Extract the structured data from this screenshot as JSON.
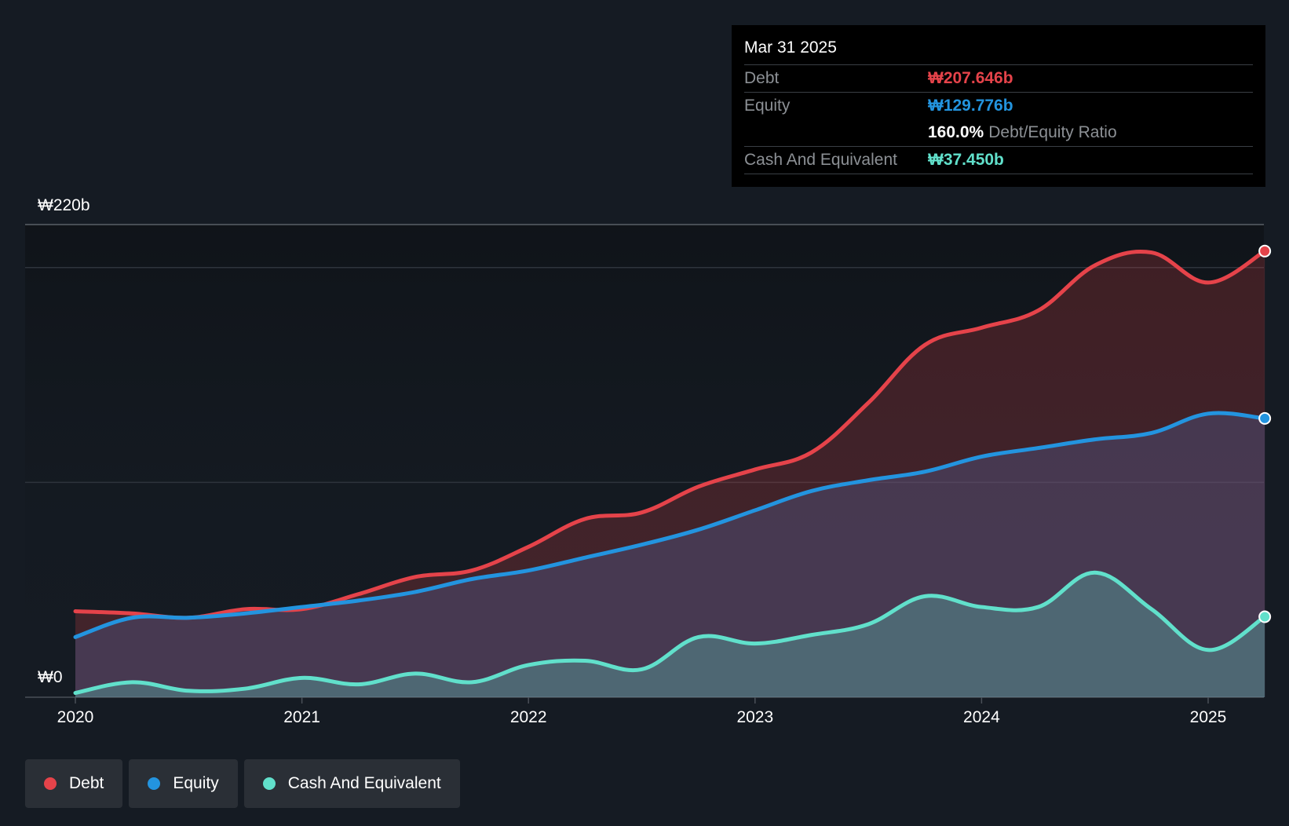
{
  "chart_data": {
    "type": "area",
    "y_max_label": "₩220b",
    "y_min_label": "₩0",
    "ylim": [
      0,
      220
    ],
    "x_ticks": [
      "2020",
      "2021",
      "2022",
      "2023",
      "2024",
      "2025"
    ],
    "series": [
      {
        "name": "Debt",
        "color": "#e5434a",
        "x": [
          2020.0,
          2020.25,
          2020.5,
          2020.75,
          2021.0,
          2021.25,
          2021.5,
          2021.75,
          2022.0,
          2022.25,
          2022.5,
          2022.75,
          2023.0,
          2023.25,
          2023.5,
          2023.75,
          2024.0,
          2024.25,
          2024.5,
          2024.75,
          2025.0,
          2025.25
        ],
        "values": [
          40,
          39,
          37,
          41,
          41,
          48,
          56,
          59,
          70,
          83,
          86,
          98,
          106,
          114,
          137,
          164,
          172,
          180,
          201,
          207,
          193,
          207.646
        ]
      },
      {
        "name": "Equity",
        "color": "#2394df",
        "x": [
          2020.0,
          2020.25,
          2020.5,
          2020.75,
          2021.0,
          2021.25,
          2021.5,
          2021.75,
          2022.0,
          2022.25,
          2022.5,
          2022.75,
          2023.0,
          2023.25,
          2023.5,
          2023.75,
          2024.0,
          2024.25,
          2024.5,
          2024.75,
          2025.0,
          2025.25
        ],
        "values": [
          28,
          37,
          37,
          39,
          42,
          45,
          49,
          55,
          59,
          65,
          71,
          78,
          87,
          96,
          101,
          105,
          112,
          116,
          120,
          123,
          132,
          129.776
        ]
      },
      {
        "name": "Cash And Equivalent",
        "color": "#61e0cb",
        "x": [
          2020.0,
          2020.25,
          2020.5,
          2020.75,
          2021.0,
          2021.25,
          2021.5,
          2021.75,
          2022.0,
          2022.25,
          2022.5,
          2022.75,
          2023.0,
          2023.25,
          2023.5,
          2023.75,
          2024.0,
          2024.25,
          2024.5,
          2024.75,
          2025.0,
          2025.25
        ],
        "values": [
          2,
          7,
          3,
          4,
          9,
          6,
          11,
          7,
          15,
          17,
          13,
          28,
          25,
          29,
          34,
          47,
          42,
          42,
          58,
          41,
          22,
          37.45
        ]
      }
    ]
  },
  "tooltip": {
    "date": "Mar 31 2025",
    "debt_label": "Debt",
    "debt_value": "₩207.646b",
    "equity_label": "Equity",
    "equity_value": "₩129.776b",
    "ratio_value": "160.0%",
    "ratio_label": "Debt/Equity Ratio",
    "cash_label": "Cash And Equivalent",
    "cash_value": "₩37.450b"
  },
  "legend": [
    {
      "label": "Debt",
      "color": "#e5434a"
    },
    {
      "label": "Equity",
      "color": "#2394df"
    },
    {
      "label": "Cash And Equivalent",
      "color": "#61e0cb"
    }
  ]
}
